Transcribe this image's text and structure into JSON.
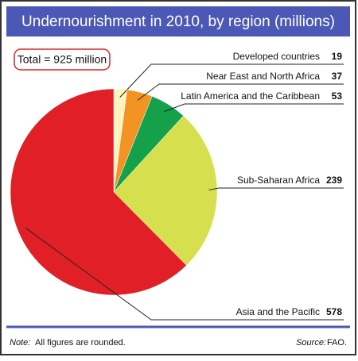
{
  "chart_data": {
    "type": "pie",
    "title": "Undernourishment in 2010,  by region (millions)",
    "total_label": "Total = 925 million",
    "categories": [
      "Developed countries",
      "Near East and North Africa",
      "Latin America and the Caribbean",
      "Sub-Saharan Africa",
      "Asia and the Pacific"
    ],
    "values": [
      19,
      37,
      53,
      239,
      578
    ],
    "colors": [
      "#fdf3bd",
      "#f39324",
      "#15a04a",
      "#d6e04e",
      "#e01f26"
    ],
    "note_label": "Note:",
    "note": "All figures are rounded.",
    "source_label": "Source:",
    "source": "FAO."
  }
}
